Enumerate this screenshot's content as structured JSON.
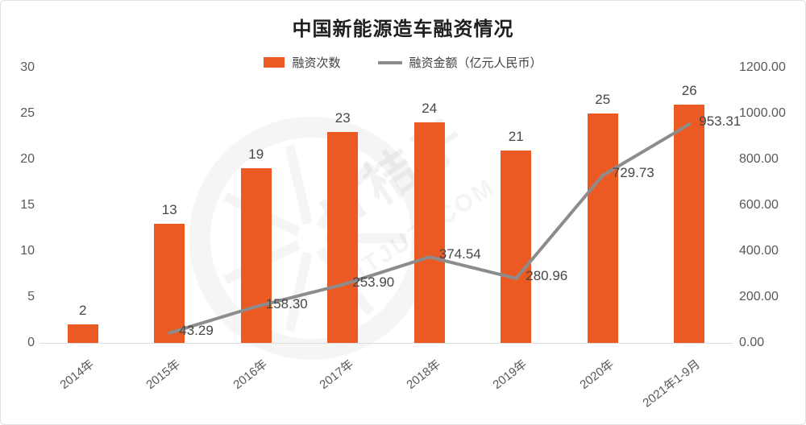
{
  "title": "中国新能源造车融资情况",
  "legend": {
    "bar_label": "融资次数",
    "line_label": "融资金额（亿元人民币）"
  },
  "watermark": {
    "line1": "IT桔子",
    "line2": "ITJUZI.COM"
  },
  "colors": {
    "bar": "#EB5A23",
    "line": "#8C8C8C",
    "axis_text": "#595959",
    "baseline": "#DCDCDC",
    "title_text": "#1F1F1F"
  },
  "chart_data": {
    "type": "bar",
    "combo": "bar+line dual-axis",
    "title": "中国新能源造车融资情况",
    "categories": [
      "2014年",
      "2015年",
      "2016年",
      "2017年",
      "2018年",
      "2019年",
      "2020年",
      "2021年1-9月"
    ],
    "series": [
      {
        "name": "融资次数",
        "type": "bar",
        "axis": "left",
        "color": "#EB5A23",
        "values": [
          2,
          13,
          19,
          23,
          24,
          21,
          25,
          26
        ]
      },
      {
        "name": "融资金额（亿元人民币）",
        "type": "line",
        "axis": "right",
        "color": "#8C8C8C",
        "values": [
          null,
          43.29,
          158.3,
          253.9,
          374.54,
          280.96,
          729.73,
          953.31
        ],
        "labels": [
          "",
          "43.29",
          "158.30",
          "253.90",
          "374.54",
          "280.96",
          "729.73",
          "953.31"
        ]
      }
    ],
    "left_axis": {
      "min": 0,
      "max": 30,
      "step": 5,
      "ticks": [
        "0",
        "5",
        "10",
        "15",
        "20",
        "25",
        "30"
      ]
    },
    "right_axis": {
      "min": 0,
      "max": 1200,
      "step": 200,
      "ticks": [
        "0.00",
        "200.00",
        "400.00",
        "600.00",
        "800.00",
        "1000.00",
        "1200.00"
      ]
    },
    "grid": false,
    "legend_position": "top",
    "xlabel_rotation_deg": -38
  }
}
